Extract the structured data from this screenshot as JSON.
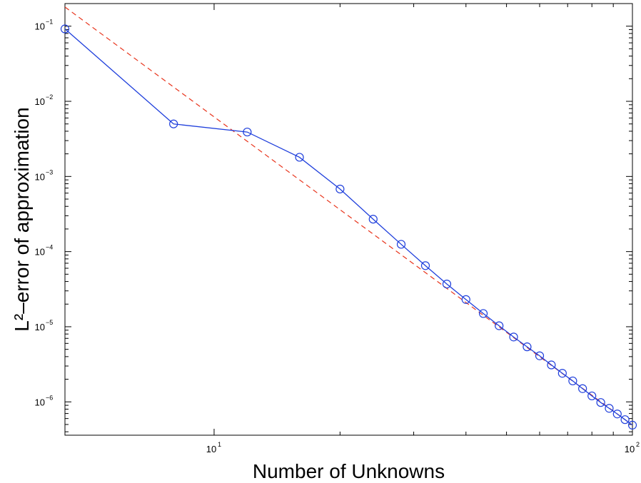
{
  "chart_data": {
    "type": "line",
    "title": "",
    "xlabel": "Number of Unknowns",
    "ylabel": "L²–error of approximation",
    "xscale": "log",
    "yscale": "log",
    "xlim": [
      4.4,
      100
    ],
    "ylim": [
      3.6e-07,
      0.2
    ],
    "grid": false,
    "colors": {
      "measured": "#1f3fdc",
      "reference": "#e8341c"
    },
    "x_ticks": [
      {
        "base": "10",
        "exp": "1",
        "value": 10
      },
      {
        "base": "10",
        "exp": "2",
        "value": 100
      }
    ],
    "y_ticks": [
      {
        "base": "10",
        "exp": "−1",
        "value": 0.1
      },
      {
        "base": "10",
        "exp": "−2",
        "value": 0.01
      },
      {
        "base": "10",
        "exp": "−3",
        "value": 0.001
      },
      {
        "base": "10",
        "exp": "−4",
        "value": 0.0001
      },
      {
        "base": "10",
        "exp": "−5",
        "value": 1e-05
      },
      {
        "base": "10",
        "exp": "−6",
        "value": 1e-06
      }
    ],
    "series": [
      {
        "style": "solid-circle",
        "x": [
          4.4,
          8,
          12,
          16,
          20,
          24,
          28,
          32,
          36,
          40,
          44,
          48,
          52,
          56,
          60,
          64,
          68,
          72,
          76,
          80,
          84,
          88,
          92,
          96,
          100
        ],
        "y": [
          0.092,
          0.005,
          0.0039,
          0.0018,
          0.00068,
          0.00027,
          0.000125,
          6.5e-05,
          3.7e-05,
          2.3e-05,
          1.5e-05,
          1.03e-05,
          7.3e-06,
          5.4e-06,
          4.1e-06,
          3.1e-06,
          2.4e-06,
          1.9e-06,
          1.5e-06,
          1.2e-06,
          9.8e-07,
          8.2e-07,
          6.9e-07,
          5.8e-07,
          4.9e-07
        ]
      },
      {
        "style": "dashed",
        "x": [
          4.4,
          100
        ],
        "y": [
          0.18,
          4.9e-07
        ]
      }
    ]
  }
}
